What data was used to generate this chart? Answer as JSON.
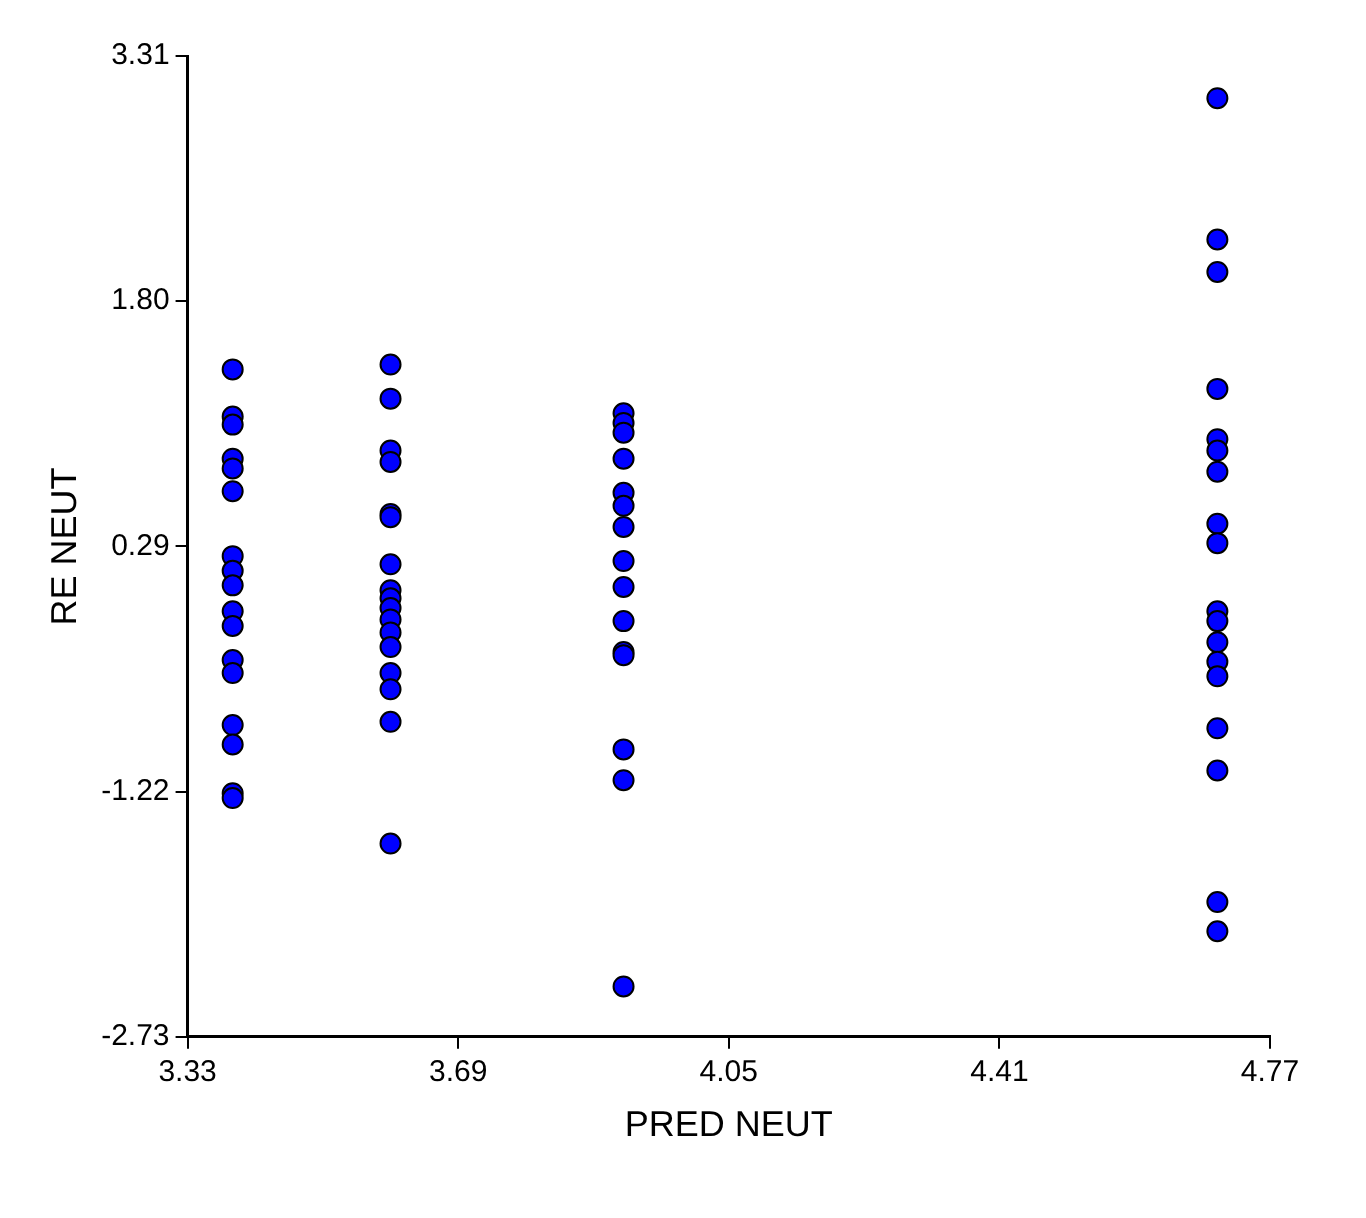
{
  "chart_data": {
    "type": "scatter",
    "xlabel": "PRED NEUT",
    "ylabel": "RE NEUT",
    "xlim": [
      3.33,
      4.77
    ],
    "xticks": [
      3.33,
      3.69,
      4.05,
      4.41,
      4.77
    ],
    "ylim": [
      -2.73,
      3.31
    ],
    "yticks": [
      -2.73,
      -1.22,
      0.29,
      {
        "value": 1.8,
        "label": "1.80"
      },
      3.31
    ],
    "grid": false,
    "legend": false,
    "marker": "circle",
    "series": [
      {
        "color": "#0000ff",
        "x": [
          3.39,
          3.39,
          3.39,
          3.39,
          3.39,
          3.39,
          3.39,
          3.39,
          3.39,
          3.39,
          3.39,
          3.39,
          3.39,
          3.39,
          3.39,
          3.39,
          3.39,
          3.6,
          3.6,
          3.6,
          3.6,
          3.6,
          3.6,
          3.6,
          3.6,
          3.6,
          3.6,
          3.6,
          3.6,
          3.6,
          3.6,
          3.6,
          3.6,
          3.6,
          3.91,
          3.91,
          3.91,
          3.91,
          3.91,
          3.91,
          3.91,
          3.91,
          3.91,
          3.91,
          3.91,
          3.91,
          3.91,
          3.91,
          3.91,
          4.7,
          4.7,
          4.7,
          4.7,
          4.7,
          4.7,
          4.7,
          4.7,
          4.7,
          4.7,
          4.7,
          4.7,
          4.7,
          4.7,
          4.7,
          4.7,
          4.7,
          4.7
        ],
        "values": [
          1.38,
          1.09,
          1.04,
          0.83,
          0.77,
          0.63,
          0.23,
          0.14,
          0.05,
          -0.11,
          -0.2,
          -0.41,
          -0.49,
          -0.81,
          -0.93,
          -1.23,
          -1.26,
          1.41,
          1.2,
          0.88,
          0.81,
          0.49,
          0.47,
          0.18,
          0.02,
          -0.03,
          -0.09,
          -0.16,
          -0.24,
          -0.33,
          -0.49,
          -0.59,
          -0.79,
          -1.54,
          1.11,
          1.05,
          0.99,
          0.83,
          0.62,
          0.54,
          0.41,
          0.2,
          0.04,
          -0.17,
          -0.36,
          -0.38,
          -0.96,
          -1.15,
          -2.42,
          3.05,
          2.18,
          1.98,
          1.26,
          0.95,
          0.88,
          0.75,
          0.43,
          0.31,
          -0.11,
          -0.17,
          -0.3,
          -0.42,
          -0.51,
          -0.83,
          -1.09,
          -1.9,
          -2.08
        ]
      }
    ]
  }
}
